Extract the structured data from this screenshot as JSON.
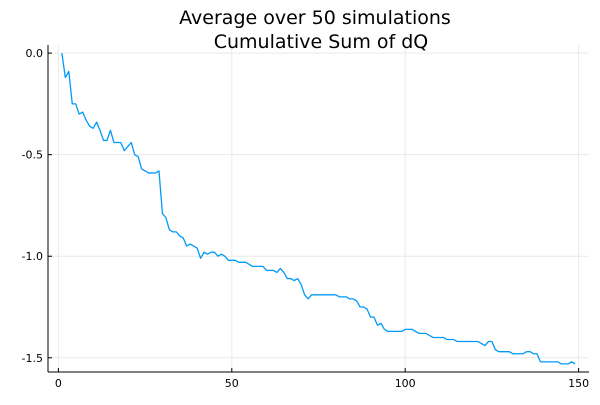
{
  "chart_data": {
    "type": "line",
    "title": "Average over 50 simulations",
    "subtitle": "Cumulative Sum of dQ",
    "xlabel": "",
    "ylabel": "",
    "xlim": [
      -3,
      153
    ],
    "ylim": [
      -1.57,
      0.04
    ],
    "xticks": [
      0,
      50,
      100,
      150
    ],
    "yticks": [
      0.0,
      -0.5,
      -1.0,
      -1.5
    ],
    "xtick_labels": [
      "0",
      "50",
      "100",
      "150"
    ],
    "ytick_labels": [
      "0.0",
      "-0.5",
      "-1.0",
      "-1.5"
    ],
    "grid": true,
    "legend": "none",
    "series": [
      {
        "color": "#009af9",
        "x": [
          1,
          2,
          3,
          4,
          5,
          6,
          7,
          8,
          9,
          10,
          11,
          12,
          13,
          14,
          15,
          16,
          17,
          18,
          19,
          20,
          21,
          22,
          23,
          24,
          25,
          26,
          27,
          28,
          29,
          30,
          31,
          32,
          33,
          34,
          35,
          36,
          37,
          38,
          39,
          40,
          41,
          42,
          43,
          44,
          45,
          46,
          47,
          48,
          49,
          50,
          51,
          52,
          53,
          54,
          55,
          56,
          57,
          58,
          59,
          60,
          61,
          62,
          63,
          64,
          65,
          66,
          67,
          68,
          69,
          70,
          71,
          72,
          73,
          74,
          75,
          76,
          77,
          78,
          79,
          80,
          81,
          82,
          83,
          84,
          85,
          86,
          87,
          88,
          89,
          90,
          91,
          92,
          93,
          94,
          95,
          96,
          97,
          98,
          99,
          100,
          101,
          102,
          103,
          104,
          105,
          106,
          107,
          108,
          109,
          110,
          111,
          112,
          113,
          114,
          115,
          116,
          117,
          118,
          119,
          120,
          121,
          122,
          123,
          124,
          125,
          126,
          127,
          128,
          129,
          130,
          131,
          132,
          133,
          134,
          135,
          136,
          137,
          138,
          139,
          140,
          141,
          142,
          143,
          144,
          145,
          146,
          147,
          148,
          149
        ],
        "y": [
          0.0,
          -0.12,
          -0.09,
          -0.25,
          -0.25,
          -0.3,
          -0.29,
          -0.33,
          -0.36,
          -0.37,
          -0.34,
          -0.38,
          -0.43,
          -0.43,
          -0.38,
          -0.44,
          -0.44,
          -0.44,
          -0.48,
          -0.46,
          -0.44,
          -0.5,
          -0.51,
          -0.57,
          -0.58,
          -0.59,
          -0.59,
          -0.59,
          -0.58,
          -0.79,
          -0.81,
          -0.87,
          -0.88,
          -0.88,
          -0.9,
          -0.91,
          -0.95,
          -0.94,
          -0.95,
          -0.96,
          -1.01,
          -0.98,
          -0.99,
          -0.98,
          -0.98,
          -1.0,
          -0.99,
          -1.0,
          -1.02,
          -1.02,
          -1.02,
          -1.03,
          -1.03,
          -1.03,
          -1.04,
          -1.05,
          -1.05,
          -1.05,
          -1.05,
          -1.07,
          -1.07,
          -1.07,
          -1.08,
          -1.06,
          -1.08,
          -1.11,
          -1.11,
          -1.12,
          -1.11,
          -1.14,
          -1.19,
          -1.21,
          -1.19,
          -1.19,
          -1.19,
          -1.19,
          -1.19,
          -1.19,
          -1.19,
          -1.19,
          -1.2,
          -1.2,
          -1.2,
          -1.21,
          -1.21,
          -1.22,
          -1.25,
          -1.25,
          -1.26,
          -1.3,
          -1.3,
          -1.34,
          -1.33,
          -1.36,
          -1.37,
          -1.37,
          -1.37,
          -1.37,
          -1.37,
          -1.36,
          -1.36,
          -1.36,
          -1.37,
          -1.38,
          -1.38,
          -1.38,
          -1.39,
          -1.4,
          -1.4,
          -1.4,
          -1.4,
          -1.41,
          -1.41,
          -1.41,
          -1.42,
          -1.42,
          -1.42,
          -1.42,
          -1.42,
          -1.42,
          -1.42,
          -1.43,
          -1.44,
          -1.42,
          -1.42,
          -1.46,
          -1.47,
          -1.47,
          -1.47,
          -1.47,
          -1.48,
          -1.48,
          -1.48,
          -1.48,
          -1.47,
          -1.47,
          -1.48,
          -1.48,
          -1.52,
          -1.52,
          -1.52,
          -1.52,
          -1.52,
          -1.52,
          -1.53,
          -1.53,
          -1.53,
          -1.52,
          -1.53
        ]
      }
    ]
  }
}
